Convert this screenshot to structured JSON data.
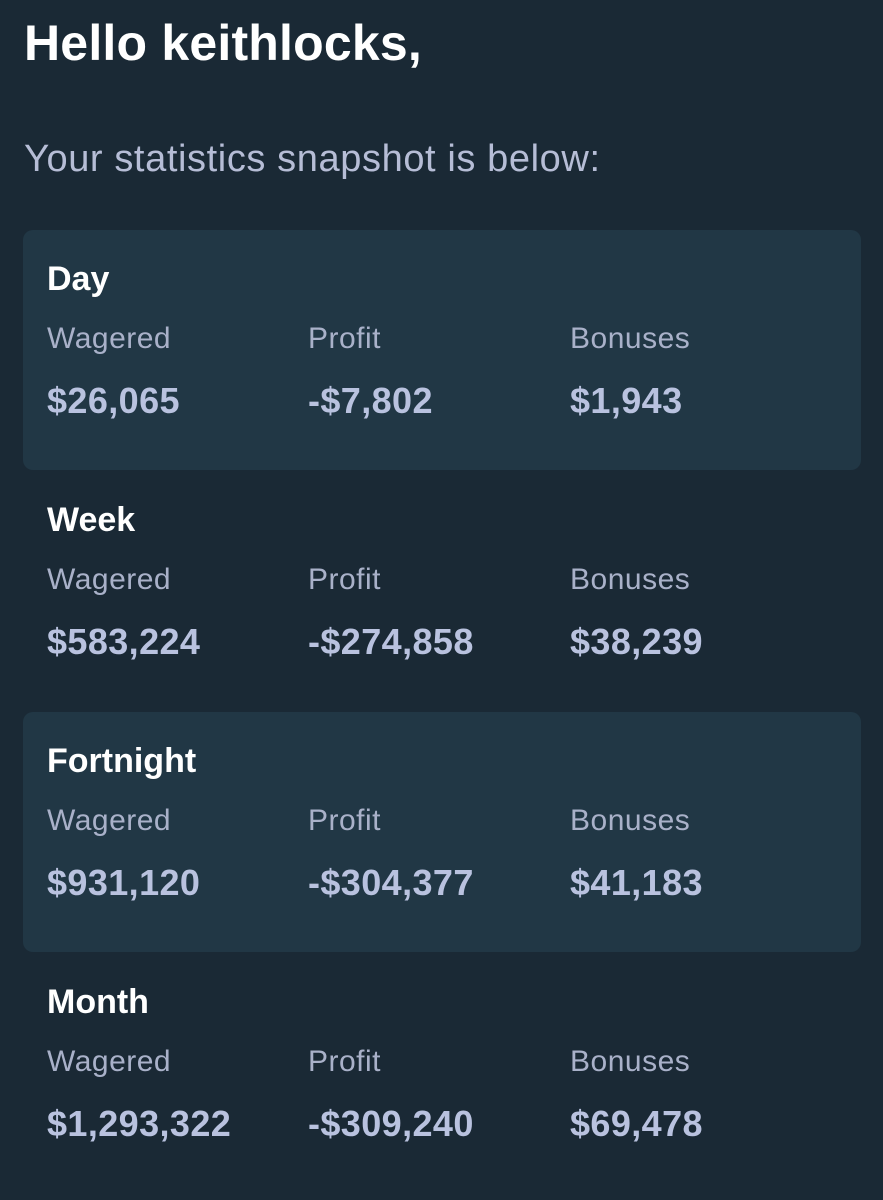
{
  "header": {
    "greeting": "Hello keithlocks,",
    "subtitle": "Your statistics snapshot is below:"
  },
  "labels": {
    "wagered": "Wagered",
    "profit": "Profit",
    "bonuses": "Bonuses"
  },
  "periods": [
    {
      "title": "Day",
      "wagered": "$26,065",
      "profit": "-$7,802",
      "bonuses": "$1,943"
    },
    {
      "title": "Week",
      "wagered": "$583,224",
      "profit": "-$274,858",
      "bonuses": "$38,239"
    },
    {
      "title": "Fortnight",
      "wagered": "$931,120",
      "profit": "-$304,377",
      "bonuses": "$41,183"
    },
    {
      "title": "Month",
      "wagered": "$1,293,322",
      "profit": "-$309,240",
      "bonuses": "$69,478"
    }
  ],
  "colors": {
    "background": "#1a2935",
    "card_shaded": "#213745",
    "title_text": "#ffffff",
    "label_text": "#a9b1c9",
    "value_text": "#b9c2df"
  }
}
